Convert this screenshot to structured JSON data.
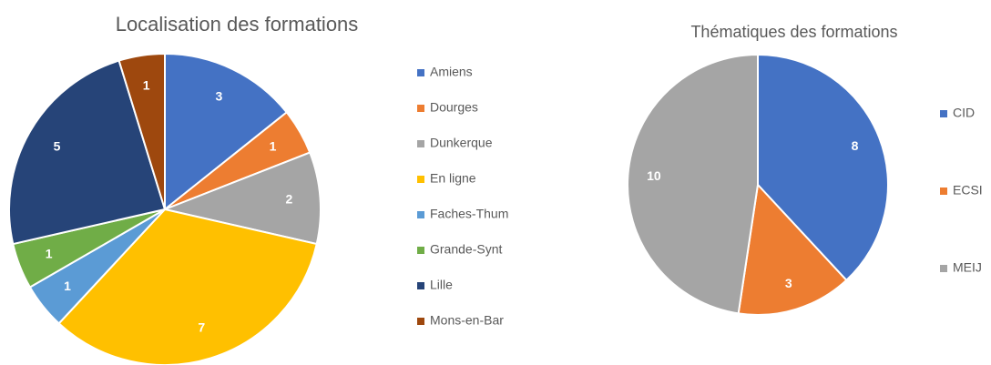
{
  "chart_data": [
    {
      "type": "pie",
      "title": "Localisation des formations",
      "categories": [
        "Amiens",
        "Dourges",
        "Dunkerque",
        "En ligne",
        "Faches-Thum",
        "Grande-Synt",
        "Lille",
        "Mons-en-Bar"
      ],
      "values": [
        3,
        1,
        2,
        7,
        1,
        1,
        5,
        1
      ],
      "colors": [
        "#4472c4",
        "#ed7d31",
        "#a5a5a5",
        "#ffc000",
        "#5b9bd5",
        "#70ad47",
        "#264478",
        "#9e480e"
      ],
      "legend": "right"
    },
    {
      "type": "pie",
      "title": "Thématiques des formations",
      "categories": [
        "CID",
        "ECSI",
        "MEIJ"
      ],
      "values": [
        8,
        3,
        10
      ],
      "colors": [
        "#4472c4",
        "#ed7d31",
        "#a5a5a5"
      ],
      "legend": "right"
    }
  ]
}
